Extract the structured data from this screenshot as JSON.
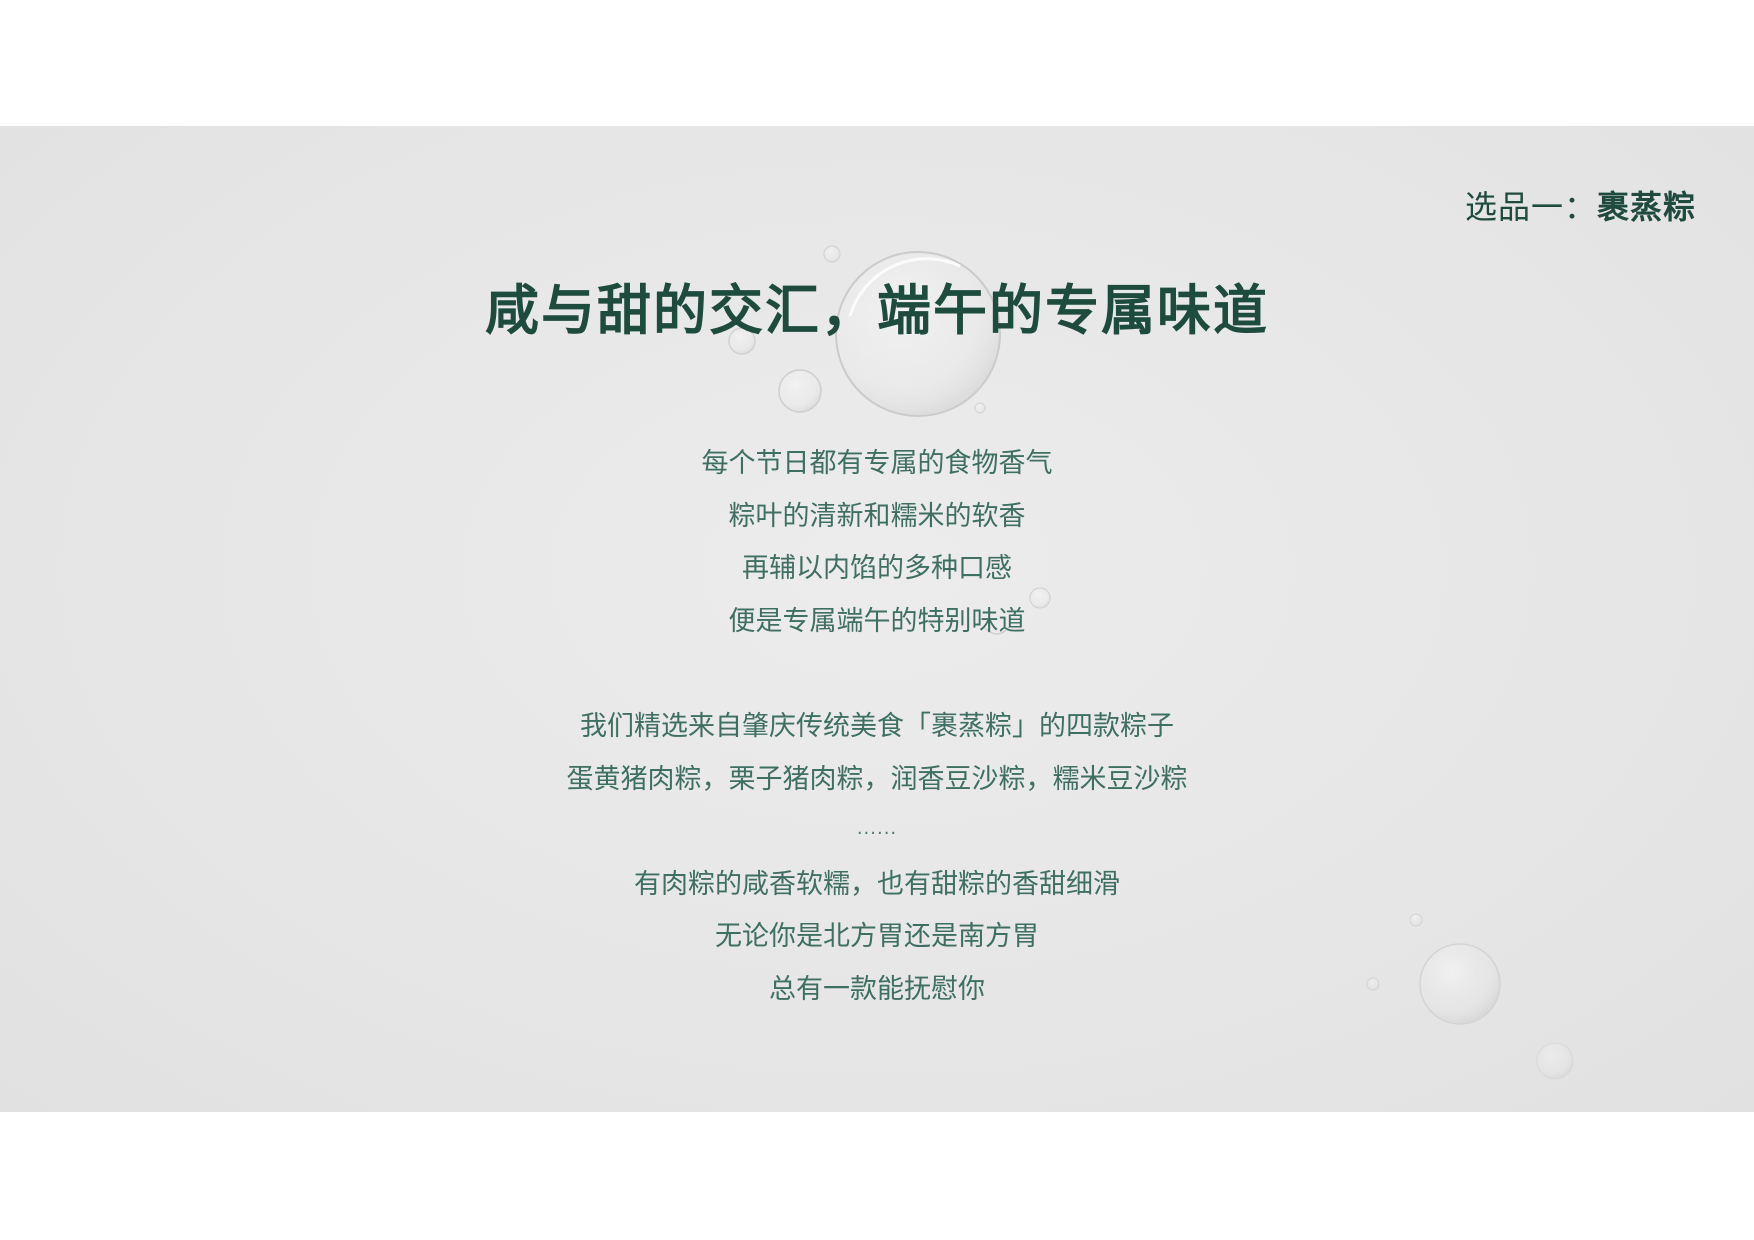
{
  "header": {
    "label_prefix": "选品一：",
    "label_product": "裹蒸粽"
  },
  "title": "咸与甜的交汇，端午的专属味道",
  "paragraph1": [
    "每个节日都有专属的食物香气",
    "粽叶的清新和糯米的软香",
    "再辅以内馅的多种口感",
    "便是专属端午的特别味道"
  ],
  "paragraph2": [
    "我们精选来自肇庆传统美食「裹蒸粽」的四款粽子",
    "蛋黄猪肉粽，栗子猪肉粽，润香豆沙粽，糯米豆沙粽"
  ],
  "ellipsis": "......",
  "paragraph3": [
    "有肉粽的咸香软糯，也有甜粽的香甜细滑",
    "无论你是北方胃还是南方胃",
    "总有一款能抚慰你"
  ],
  "colors": {
    "title": "#1d4b3d",
    "body": "#3f6f62",
    "background": "#e6e6e6"
  }
}
